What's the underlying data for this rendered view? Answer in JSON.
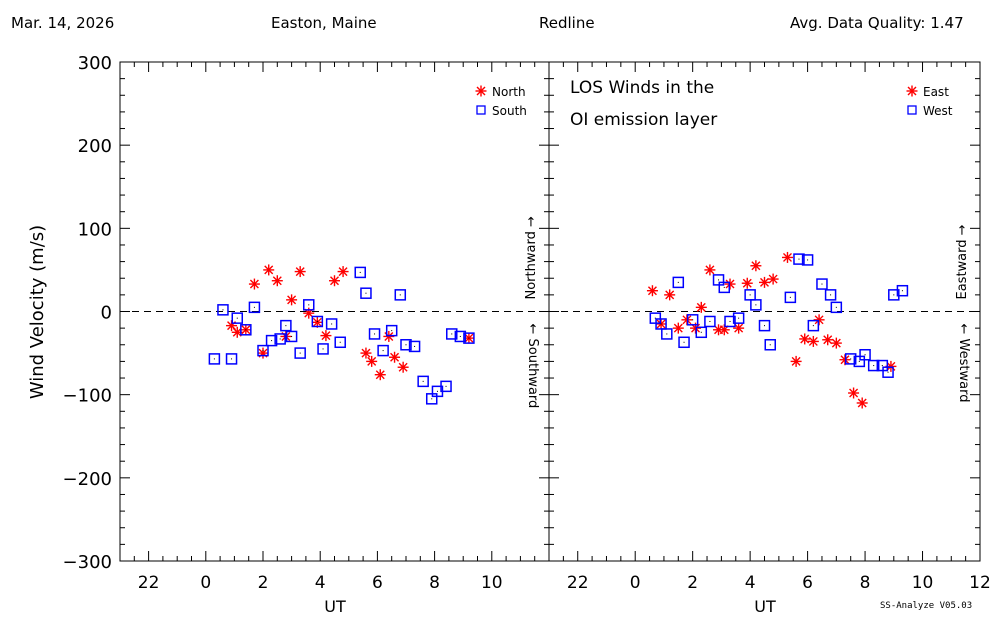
{
  "header": {
    "date": "Mar. 14, 2026",
    "site": "Easton, Maine",
    "line": "Redline",
    "quality": "Avg. Data Quality: 1.47"
  },
  "footer": {
    "credit": "SS-Analyze V05.03"
  },
  "colors": {
    "series_a": "#ff0000",
    "series_b": "#0000ff",
    "axis": "#000000"
  },
  "chart_data": [
    {
      "type": "scatter",
      "title": "",
      "xlabel": "UT",
      "ylabel": "Wind Velocity (m/s)",
      "xlim": [
        -3,
        12
      ],
      "ylim": [
        -300,
        300
      ],
      "xticks": [
        -2,
        0,
        2,
        4,
        6,
        8,
        10
      ],
      "xtick_labels": [
        "22",
        "0",
        "2",
        "4",
        "6",
        "8",
        "10"
      ],
      "yticks": [
        300,
        200,
        100,
        0,
        -100,
        -200,
        -300
      ],
      "ytick_labels": [
        "300",
        "200",
        "100",
        "0",
        "−100",
        "−200",
        "−300"
      ],
      "zero_line": "dashed",
      "right_labels": {
        "positive": "Northward →",
        "negative": "← Southward"
      },
      "legend_position": "top-right",
      "series": [
        {
          "name": "North",
          "marker": "asterisk",
          "color": "#ff0000",
          "x": [
            0.9,
            1.1,
            1.4,
            1.7,
            2.0,
            2.2,
            2.5,
            2.8,
            3.0,
            3.3,
            3.6,
            3.9,
            4.2,
            4.5,
            4.8,
            5.6,
            5.8,
            6.1,
            6.4,
            6.6,
            6.9,
            9.2
          ],
          "y": [
            -17,
            -25,
            -22,
            33,
            -50,
            50,
            37,
            -30,
            14,
            48,
            -2,
            -13,
            -29,
            37,
            48,
            -50,
            -60,
            -76,
            -30,
            -55,
            -67,
            -32
          ]
        },
        {
          "name": "South",
          "marker": "square",
          "color": "#0000ff",
          "x": [
            0.3,
            0.6,
            0.9,
            1.1,
            1.4,
            1.7,
            2.0,
            2.3,
            2.6,
            2.8,
            3.0,
            3.3,
            3.6,
            3.9,
            4.1,
            4.4,
            4.7,
            5.4,
            5.6,
            5.9,
            6.2,
            6.5,
            6.8,
            7.0,
            7.3,
            7.6,
            7.9,
            8.1,
            8.4,
            8.6,
            8.9,
            9.2
          ],
          "y": [
            -57,
            2,
            -57,
            -8,
            -22,
            5,
            -47,
            -35,
            -33,
            -17,
            -30,
            -50,
            8,
            -12,
            -45,
            -15,
            -37,
            47,
            22,
            -27,
            -47,
            -23,
            20,
            -40,
            -42,
            -84,
            -105,
            -96,
            -90,
            -27,
            -30,
            -32
          ]
        }
      ]
    },
    {
      "type": "scatter",
      "title": "LOS Winds in the OI emission layer",
      "title_lines": [
        "LOS Winds in the",
        "OI emission layer"
      ],
      "xlabel": "UT",
      "ylabel": "",
      "xlim": [
        -3,
        12
      ],
      "ylim": [
        -300,
        300
      ],
      "xticks": [
        -2,
        0,
        2,
        4,
        6,
        8,
        10,
        12
      ],
      "xtick_labels": [
        "22",
        "0",
        "2",
        "4",
        "6",
        "8",
        "10",
        "12"
      ],
      "zero_line": "dashed",
      "right_labels": {
        "positive": "Eastward →",
        "negative": "← Westward"
      },
      "legend_position": "top-right",
      "series": [
        {
          "name": "East",
          "marker": "asterisk",
          "color": "#ff0000",
          "x": [
            0.6,
            0.9,
            1.2,
            1.5,
            1.8,
            2.1,
            2.3,
            2.6,
            2.9,
            3.1,
            3.3,
            3.6,
            3.9,
            4.2,
            4.5,
            4.8,
            5.3,
            5.6,
            5.9,
            6.2,
            6.4,
            6.7,
            7.0,
            7.3,
            7.6,
            7.9,
            8.9
          ],
          "y": [
            25,
            -15,
            20,
            -20,
            -10,
            -20,
            5,
            50,
            -22,
            -22,
            33,
            -20,
            34,
            55,
            35,
            39,
            65,
            -60,
            -33,
            -36,
            -10,
            -34,
            -38,
            -58,
            -98,
            -110,
            -66
          ]
        },
        {
          "name": "West",
          "marker": "square",
          "color": "#0000ff",
          "x": [
            0.7,
            0.9,
            1.1,
            1.5,
            1.7,
            2.0,
            2.3,
            2.6,
            2.9,
            3.1,
            3.3,
            3.6,
            4.0,
            4.2,
            4.5,
            4.7,
            5.4,
            5.7,
            6.0,
            6.2,
            6.5,
            6.8,
            7.0,
            7.5,
            7.8,
            8.0,
            8.3,
            8.6,
            8.8,
            9.0,
            9.3
          ],
          "y": [
            -8,
            -15,
            -27,
            35,
            -37,
            -10,
            -25,
            -12,
            38,
            29,
            -12,
            -8,
            20,
            8,
            -17,
            -40,
            17,
            63,
            62,
            -17,
            33,
            20,
            5,
            -57,
            -60,
            -52,
            -65,
            -65,
            -73,
            20,
            25
          ]
        }
      ]
    }
  ]
}
